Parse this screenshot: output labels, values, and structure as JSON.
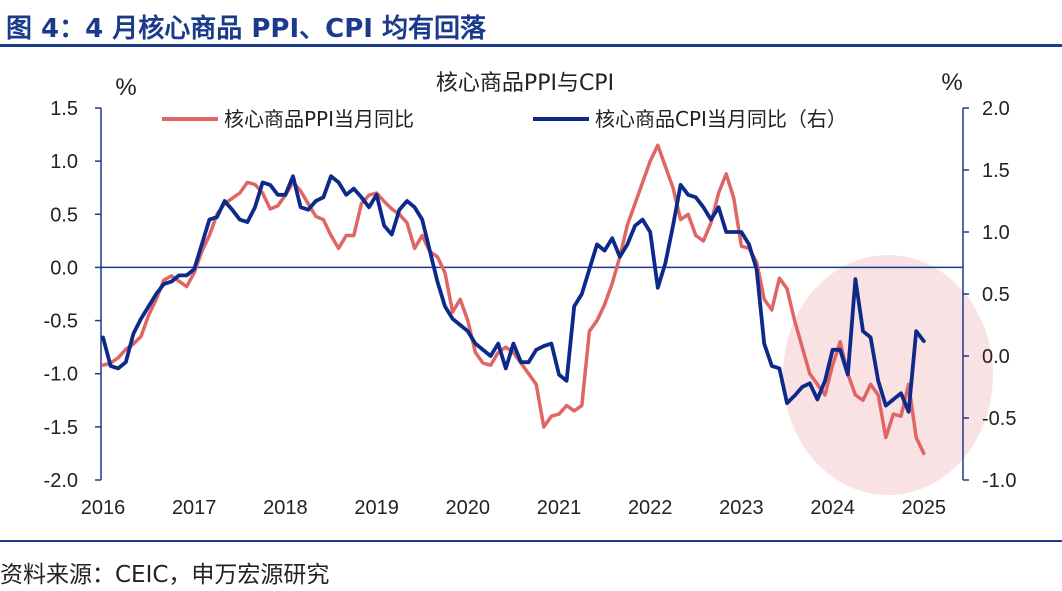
{
  "header": {
    "figure_title": "图 4：4 月核心商品 PPI、CPI 均有回落"
  },
  "footer": {
    "source": "资料来源：CEIC，申万宏源研究"
  },
  "colors": {
    "ppi": "#e06666",
    "cpi": "#0d2a8a",
    "axis": "#1a3a8c",
    "highlight": "#f5d6d8"
  },
  "chart_data": {
    "type": "line",
    "title": "核心商品PPI与CPI",
    "left_unit": "%",
    "right_unit": "%",
    "left_ylim": [
      -2.0,
      1.5
    ],
    "right_ylim": [
      -1.0,
      2.0
    ],
    "left_ticks": [
      "1.5",
      "1.0",
      "0.5",
      "0.0",
      "-0.5",
      "-1.0",
      "-1.5",
      "-2.0"
    ],
    "right_ticks": [
      "2.0",
      "1.5",
      "1.0",
      "0.5",
      "0.0",
      "-0.5",
      "-1.0"
    ],
    "x_ticks": [
      "2016",
      "2017",
      "2018",
      "2019",
      "2020",
      "2021",
      "2022",
      "2023",
      "2024",
      "2025"
    ],
    "x_range": [
      "2016-01",
      "2025-04"
    ],
    "grid": false,
    "legend_position": "top",
    "highlight": "circle around 2024–2025",
    "series": [
      {
        "name": "核心商品PPI当月同比",
        "axis": "left",
        "start": "2016-01",
        "values": [
          -0.92,
          -0.9,
          -0.85,
          -0.77,
          -0.72,
          -0.65,
          -0.45,
          -0.3,
          -0.12,
          -0.08,
          -0.13,
          -0.18,
          -0.05,
          0.15,
          0.3,
          0.5,
          0.6,
          0.65,
          0.7,
          0.8,
          0.78,
          0.7,
          0.55,
          0.58,
          0.68,
          0.8,
          0.72,
          0.6,
          0.48,
          0.45,
          0.3,
          0.18,
          0.3,
          0.3,
          0.6,
          0.68,
          0.7,
          0.62,
          0.55,
          0.5,
          0.42,
          0.18,
          0.3,
          0.15,
          0.1,
          -0.05,
          -0.42,
          -0.3,
          -0.5,
          -0.8,
          -0.9,
          -0.92,
          -0.8,
          -0.75,
          -0.8,
          -0.9,
          -1.0,
          -1.1,
          -1.5,
          -1.4,
          -1.38,
          -1.3,
          -1.35,
          -1.3,
          -0.6,
          -0.5,
          -0.35,
          -0.15,
          0.1,
          0.4,
          0.6,
          0.8,
          1.0,
          1.15,
          0.95,
          0.75,
          0.45,
          0.5,
          0.3,
          0.25,
          0.42,
          0.7,
          0.88,
          0.65,
          0.2,
          0.18,
          0.05,
          -0.3,
          -0.4,
          -0.1,
          -0.2,
          -0.5,
          -0.75,
          -1.0,
          -1.1,
          -1.2,
          -0.92,
          -0.7,
          -1.0,
          -1.2,
          -1.25,
          -1.1,
          -1.2,
          -1.6,
          -1.38,
          -1.4,
          -1.1,
          -1.6,
          -1.75
        ]
      },
      {
        "name": "核心商品CPI当月同比（右）",
        "axis": "right",
        "start": "2016-01",
        "values": [
          0.15,
          -0.08,
          -0.1,
          -0.05,
          0.18,
          0.3,
          0.4,
          0.5,
          0.58,
          0.6,
          0.65,
          0.65,
          0.7,
          0.9,
          1.1,
          1.12,
          1.25,
          1.18,
          1.1,
          1.08,
          1.2,
          1.4,
          1.38,
          1.3,
          1.3,
          1.45,
          1.2,
          1.18,
          1.25,
          1.28,
          1.45,
          1.4,
          1.3,
          1.35,
          1.28,
          1.2,
          1.3,
          1.05,
          0.98,
          1.18,
          1.25,
          1.2,
          1.1,
          0.85,
          0.6,
          0.4,
          0.3,
          0.25,
          0.2,
          0.1,
          0.05,
          0.0,
          0.1,
          -0.1,
          0.1,
          -0.05,
          -0.05,
          0.05,
          0.08,
          0.1,
          -0.15,
          -0.2,
          0.4,
          0.5,
          0.7,
          0.9,
          0.85,
          0.95,
          0.8,
          0.9,
          1.05,
          1.1,
          1.0,
          0.55,
          0.75,
          1.05,
          1.38,
          1.3,
          1.28,
          1.2,
          1.1,
          1.2,
          1.0,
          1.0,
          1.0,
          0.9,
          0.7,
          0.1,
          -0.08,
          -0.1,
          -0.38,
          -0.32,
          -0.25,
          -0.22,
          -0.35,
          -0.2,
          0.05,
          0.05,
          -0.15,
          0.62,
          0.2,
          0.15,
          -0.2,
          -0.4,
          -0.35,
          -0.3,
          -0.45,
          0.2,
          0.12
        ]
      }
    ]
  }
}
